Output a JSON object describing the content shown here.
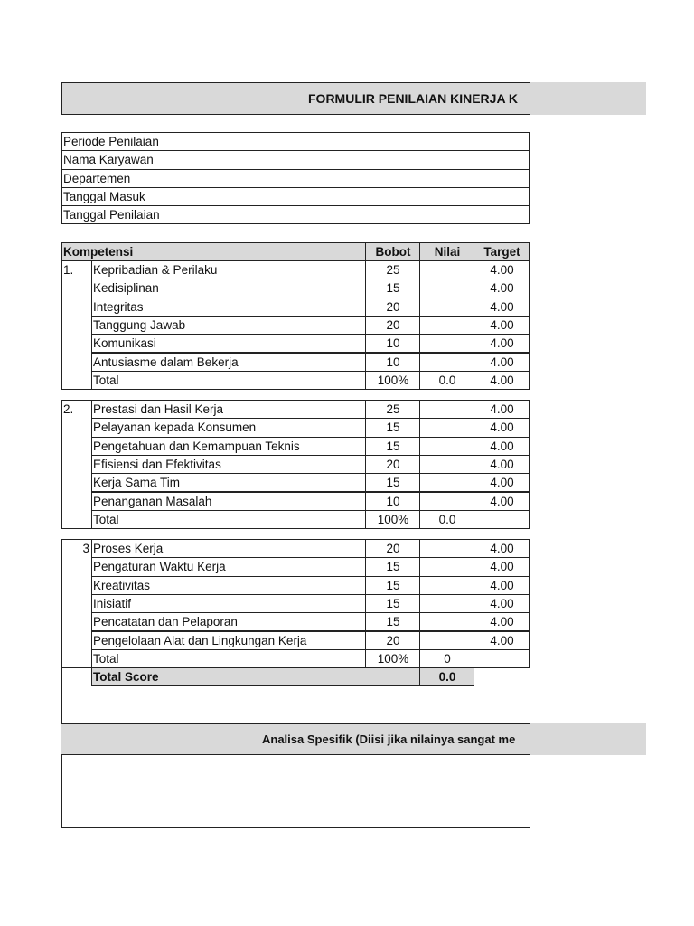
{
  "title": "FORMULIR PENILAIAN KINERJA K",
  "info_fields": [
    "Periode Penilaian",
    "Nama Karyawan",
    "Departemen",
    "Tanggal Masuk",
    "Tanggal Penilaian"
  ],
  "table_header": {
    "kompetensi": "Kompetensi",
    "bobot": "Bobot",
    "nilai": "Nilai",
    "target": "Target"
  },
  "sections": [
    {
      "number": "1.",
      "rows": [
        {
          "name": "Kepribadian & Perilaku",
          "bobot": "25",
          "nilai": "",
          "target": "4.00"
        },
        {
          "name": "Kedisiplinan",
          "bobot": "15",
          "nilai": "",
          "target": "4.00"
        },
        {
          "name": "Integritas",
          "bobot": "20",
          "nilai": "",
          "target": "4.00"
        },
        {
          "name": "Tanggung Jawab",
          "bobot": "20",
          "nilai": "",
          "target": "4.00"
        },
        {
          "name": "Komunikasi",
          "bobot": "10",
          "nilai": "",
          "target": "4.00"
        },
        {
          "name": "Antusiasme dalam Bekerja",
          "bobot": "10",
          "nilai": "",
          "target": "4.00"
        },
        {
          "name": "Total",
          "bobot": "100%",
          "nilai": "0.0",
          "target": "4.00"
        }
      ]
    },
    {
      "number": "2.",
      "rows": [
        {
          "name": "Prestasi dan Hasil Kerja",
          "bobot": "25",
          "nilai": "",
          "target": "4.00"
        },
        {
          "name": "Pelayanan kepada Konsumen",
          "bobot": "15",
          "nilai": "",
          "target": "4.00"
        },
        {
          "name": "Pengetahuan dan Kemampuan Teknis",
          "bobot": "15",
          "nilai": "",
          "target": "4.00"
        },
        {
          "name": "Efisiensi dan Efektivitas",
          "bobot": "20",
          "nilai": "",
          "target": "4.00"
        },
        {
          "name": "Kerja Sama Tim",
          "bobot": "15",
          "nilai": "",
          "target": "4.00"
        },
        {
          "name": "Penanganan Masalah",
          "bobot": "10",
          "nilai": "",
          "target": "4.00"
        },
        {
          "name": "Total",
          "bobot": "100%",
          "nilai": "0.0",
          "target": ""
        }
      ]
    },
    {
      "number": "3",
      "rows": [
        {
          "name": "Proses Kerja",
          "bobot": "20",
          "nilai": "",
          "target": "4.00"
        },
        {
          "name": "Pengaturan Waktu Kerja",
          "bobot": "15",
          "nilai": "",
          "target": "4.00"
        },
        {
          "name": "Kreativitas",
          "bobot": "15",
          "nilai": "",
          "target": "4.00"
        },
        {
          "name": "Inisiatif",
          "bobot": "15",
          "nilai": "",
          "target": "4.00"
        },
        {
          "name": "Pencatatan dan Pelaporan",
          "bobot": "15",
          "nilai": "",
          "target": "4.00"
        },
        {
          "name": "Pengelolaan Alat dan Lingkungan Kerja",
          "bobot": "20",
          "nilai": "",
          "target": "4.00"
        },
        {
          "name": "Total",
          "bobot": "100%",
          "nilai": "0",
          "target": ""
        }
      ]
    }
  ],
  "total_score": {
    "label": "Total Score",
    "value": "0.0"
  },
  "analysis_title": "Analisa Spesifik (Diisi jika nilainya sangat me"
}
